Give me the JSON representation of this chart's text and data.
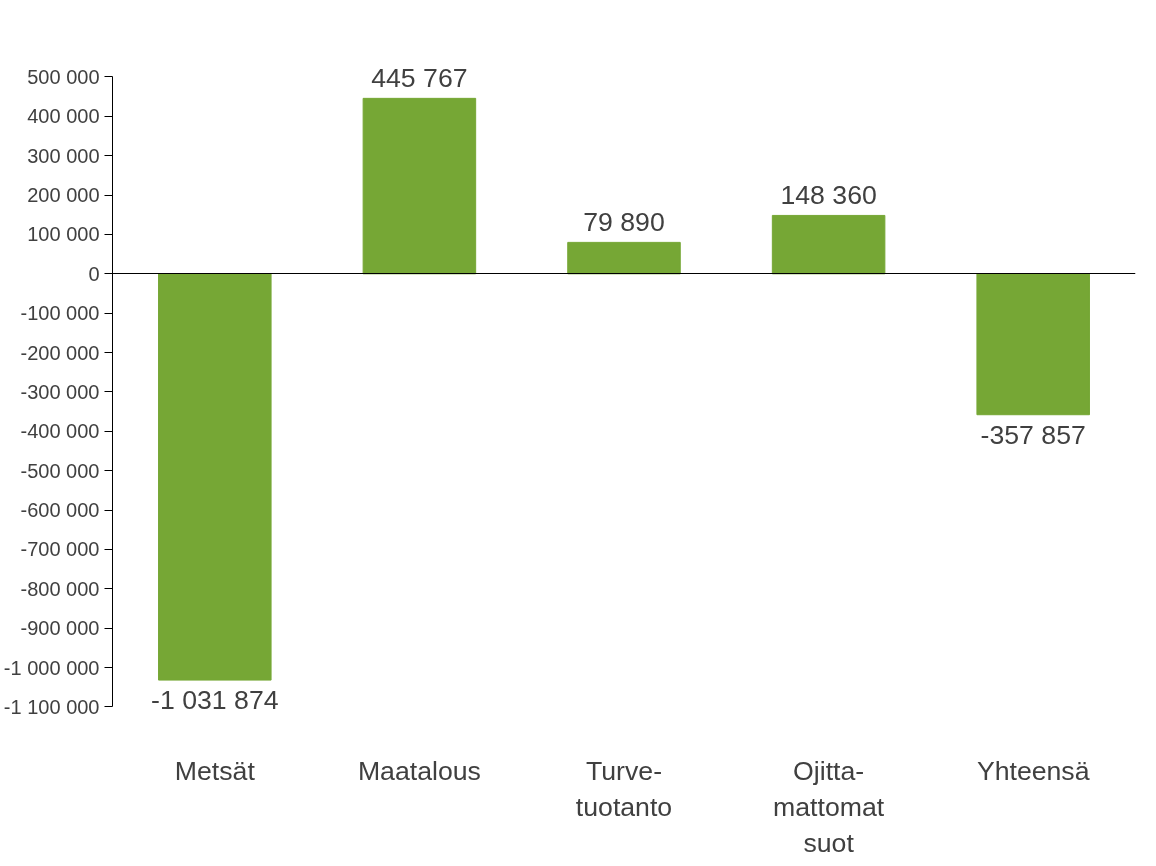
{
  "chart_data": {
    "type": "bar",
    "categories": [
      "Metsät",
      "Maatalous",
      "Turve-\ntuotanto",
      "Ojitta-\nmattomat\nsuot",
      "Yhteensä"
    ],
    "values": [
      -1031874,
      445767,
      79890,
      148360,
      -357857
    ],
    "color": "#76a735",
    "data_labels": true,
    "ylim": [
      -1100000,
      500000
    ],
    "yticks": [
      {
        "value": -1100000,
        "label": "-1 100 000"
      },
      {
        "value": -1000000,
        "label": "-1 000 000"
      },
      {
        "value": -900000,
        "label": "-900 000"
      },
      {
        "value": -800000,
        "label": "-800 000"
      },
      {
        "value": -700000,
        "label": "-700 000"
      },
      {
        "value": -600000,
        "label": "-600 000"
      },
      {
        "value": -500000,
        "label": "-500 000"
      },
      {
        "value": -400000,
        "label": "-400 000"
      },
      {
        "value": -300000,
        "label": "-300 000"
      },
      {
        "value": -200000,
        "label": "-200 000"
      },
      {
        "value": -100000,
        "label": "-100 000"
      },
      0,
      {
        "value": 100000,
        "label": "100 000"
      },
      {
        "value": 200000,
        "label": "200 000"
      },
      {
        "value": 300000,
        "label": "300 000"
      },
      {
        "value": 400000,
        "label": "400 000"
      },
      {
        "value": 500000,
        "label": "500 000"
      }
    ]
  }
}
